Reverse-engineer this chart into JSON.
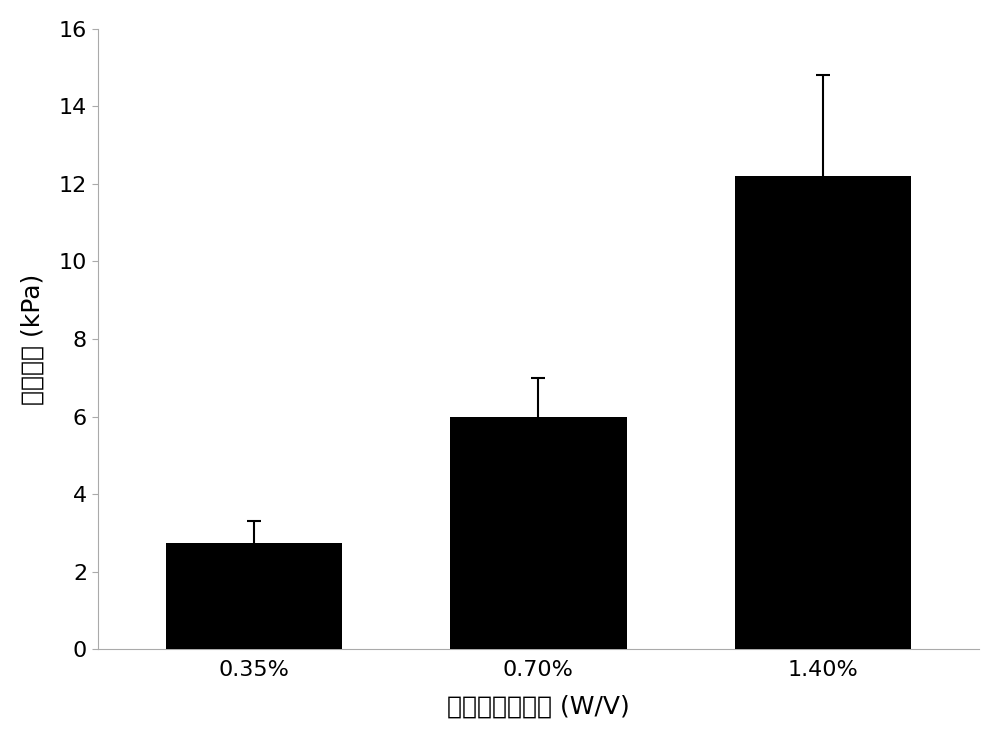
{
  "categories": [
    "0.35%",
    "0.70%",
    "1.40%"
  ],
  "values": [
    2.75,
    6.0,
    12.2
  ],
  "errors": [
    0.55,
    1.0,
    2.6
  ],
  "bar_color": "#000000",
  "bar_width": 0.62,
  "ylim": [
    0,
    16
  ],
  "yticks": [
    0,
    2,
    4,
    6,
    8,
    10,
    12,
    14,
    16
  ],
  "ylabel": "弹性模量 (kPa)",
  "xlabel": "琼脂糖质量浓度 (W/V)",
  "ylabel_fontsize": 18,
  "xlabel_fontsize": 18,
  "tick_fontsize": 16,
  "background_color": "#ffffff",
  "error_capsize": 5,
  "error_linewidth": 1.5,
  "spine_color": "#aaaaaa",
  "spine_linewidth": 0.8
}
